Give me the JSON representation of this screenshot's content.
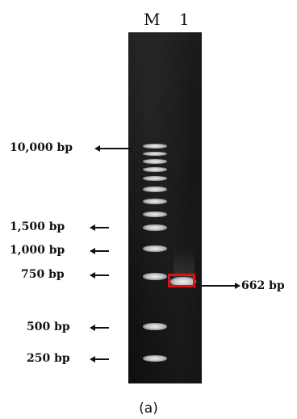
{
  "lanes": {
    "marker_lane": "M",
    "sample_lane": "1"
  },
  "ladder_labels": [
    "10,000 bp",
    "1,500 bp",
    "1,000 bp",
    "750 bp",
    "500 bp",
    "250 bp"
  ],
  "product_label": "662 bp",
  "caption": "(a)",
  "colors": {
    "highlight_box": "#e01010",
    "gel_background": "#141414",
    "band": "#eeeeee"
  }
}
